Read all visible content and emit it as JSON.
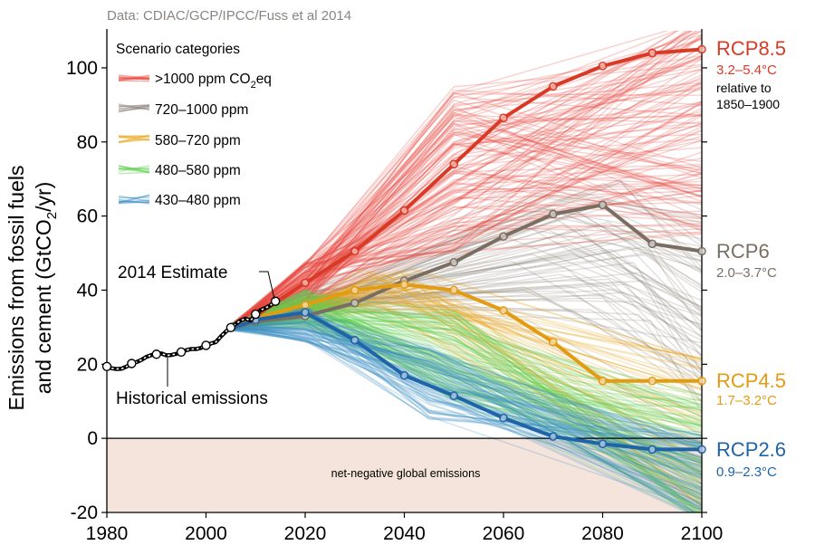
{
  "source_note": "Data: CDIAC/GCP/IPCC/Fuss et al 2014",
  "chart_data": {
    "type": "line",
    "ylabel_line1": "Emissions from fossil fuels",
    "ylabel_line2_pre": "and cement (GtCO",
    "ylabel_line2_sub": "2",
    "ylabel_line2_post": "/yr)",
    "xlim": [
      1980,
      2100
    ],
    "ylim": [
      -20,
      110
    ],
    "x_ticks": [
      "1980",
      "2000",
      "2020",
      "2040",
      "2060",
      "2080",
      "2100"
    ],
    "y_ticks": [
      "-20",
      "0",
      "20",
      "40",
      "60",
      "80",
      "100"
    ],
    "legend": {
      "title": "Scenario categories",
      "items": [
        {
          "label_pre": ">1000 ppm CO",
          "label_sub": "2",
          "label_post": "eq",
          "color": "#e8453c"
        },
        {
          "label_pre": "720–1000 ppm",
          "label_sub": "",
          "label_post": "",
          "color": "#8c8379"
        },
        {
          "label_pre": "580–720 ppm",
          "label_sub": "",
          "label_post": "",
          "color": "#e8a317"
        },
        {
          "label_pre": "480–580 ppm",
          "label_sub": "",
          "label_post": "",
          "color": "#5fd14f"
        },
        {
          "label_pre": "430–480 ppm",
          "label_sub": "",
          "label_post": "",
          "color": "#3b8fc4"
        }
      ]
    },
    "annotations": {
      "estimate": "2014 Estimate",
      "historical": "Historical emissions",
      "net_negative": "net-negative global emissions"
    },
    "historical": {
      "name": "Historical emissions",
      "x": [
        1980,
        1981,
        1982,
        1983,
        1984,
        1985,
        1986,
        1987,
        1988,
        1989,
        1990,
        1991,
        1992,
        1993,
        1994,
        1995,
        1996,
        1997,
        1998,
        1999,
        2000,
        2001,
        2002,
        2003,
        2004,
        2005,
        2006,
        2007,
        2008,
        2009,
        2010,
        2011,
        2012,
        2013,
        2014
      ],
      "y": [
        19.4,
        18.9,
        18.7,
        18.8,
        19.4,
        20.2,
        20.6,
        21.2,
        22.0,
        22.5,
        22.7,
        22.9,
        22.4,
        22.5,
        22.8,
        23.3,
        23.8,
        24.1,
        24.1,
        24.4,
        25.1,
        25.6,
        26.0,
        27.5,
        28.8,
        29.9,
        30.9,
        31.8,
        32.3,
        31.8,
        33.5,
        34.6,
        35.2,
        35.9,
        37.0
      ],
      "marker_years": [
        1980,
        1985,
        1990,
        1995,
        2000,
        2005,
        2010,
        2014
      ],
      "color": "#000000"
    },
    "series": [
      {
        "name": "RCP8.5",
        "range": "3.2–5.4°C",
        "note_line1": "relative to",
        "note_line2": "1850–1900",
        "color": "#d93a25",
        "x": [
          2005,
          2010,
          2020,
          2030,
          2040,
          2050,
          2060,
          2070,
          2080,
          2090,
          2100
        ],
        "y": [
          29.6,
          33.0,
          42.0,
          50.5,
          61.5,
          74.0,
          86.5,
          95.0,
          100.5,
          104.0,
          105.0
        ]
      },
      {
        "name": "RCP6",
        "range": "2.0–3.7°C",
        "color": "#7a6e63",
        "x": [
          2005,
          2010,
          2020,
          2030,
          2040,
          2050,
          2060,
          2070,
          2080,
          2090,
          2100
        ],
        "y": [
          29.6,
          31.5,
          33.0,
          36.5,
          42.5,
          47.5,
          54.5,
          60.5,
          63.0,
          52.5,
          50.5
        ]
      },
      {
        "name": "RCP4.5",
        "range": "1.7–3.2°C",
        "color": "#e39b12",
        "x": [
          2005,
          2010,
          2020,
          2030,
          2040,
          2050,
          2060,
          2070,
          2080,
          2090,
          2100
        ],
        "y": [
          29.6,
          32.5,
          36.0,
          40.0,
          41.5,
          40.0,
          34.5,
          26.0,
          15.5,
          15.5,
          15.5
        ]
      },
      {
        "name": "RCP2.6",
        "range": "0.9–2.3°C",
        "color": "#1f63a8",
        "x": [
          2005,
          2010,
          2020,
          2030,
          2040,
          2050,
          2060,
          2070,
          2080,
          2090,
          2100
        ],
        "y": [
          29.6,
          32.0,
          34.0,
          26.5,
          17.0,
          11.5,
          5.5,
          0.5,
          -1.5,
          -3.0,
          -3.0
        ]
      }
    ]
  }
}
